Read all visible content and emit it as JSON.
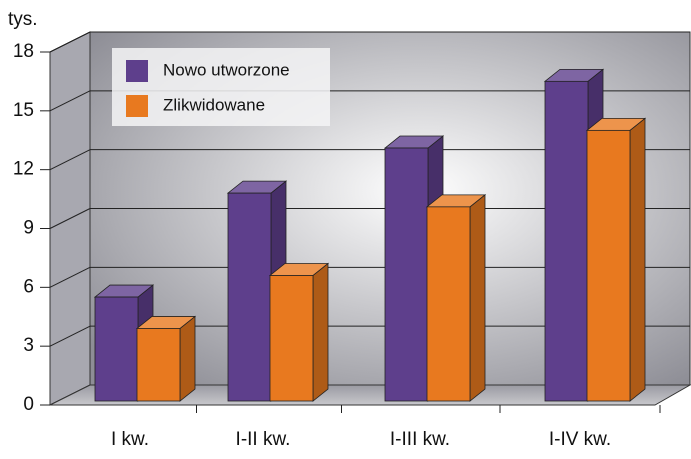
{
  "chart_data": {
    "type": "bar3d",
    "y_label": "tys.",
    "categories": [
      "I kw.",
      "I-II kw.",
      "I-III kw.",
      "I-IV kw."
    ],
    "series": [
      {
        "name": "Nowo utworzone",
        "color": "#5e3f8c",
        "values": [
          5.3,
          10.6,
          12.9,
          16.3
        ]
      },
      {
        "name": "Zlikwidowane",
        "color": "#e8791f",
        "values": [
          3.7,
          6.4,
          9.9,
          13.8
        ]
      }
    ],
    "ylim": [
      0,
      18
    ],
    "yticks": [
      0,
      3,
      6,
      9,
      12,
      15,
      18
    ],
    "grid": true,
    "legend": "upper left"
  }
}
